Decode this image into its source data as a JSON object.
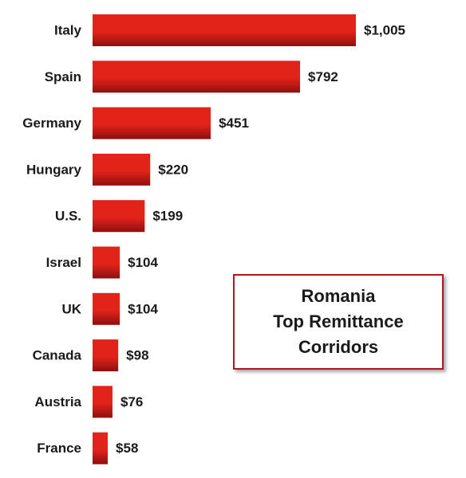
{
  "chart_data": {
    "type": "bar",
    "orientation": "horizontal",
    "title_lines": [
      "Romania",
      "Top Remittance",
      "Corridors"
    ],
    "categories": [
      "Italy",
      "Spain",
      "Germany",
      "Hungary",
      "U.S.",
      "Israel",
      "UK",
      "Canada",
      "Austria",
      "France"
    ],
    "values": [
      1005,
      792,
      451,
      220,
      199,
      104,
      104,
      98,
      76,
      58
    ],
    "value_labels": [
      "$1,005",
      "$792",
      "$451",
      "$220",
      "$199",
      "$104",
      "$104",
      "$98",
      "$76",
      "$58"
    ],
    "xlabel": "",
    "ylabel": "",
    "xlim": [
      0,
      1005
    ],
    "grid": false,
    "bar_color": "#e2231a",
    "bar_color_dark": "#8e0f0f"
  }
}
